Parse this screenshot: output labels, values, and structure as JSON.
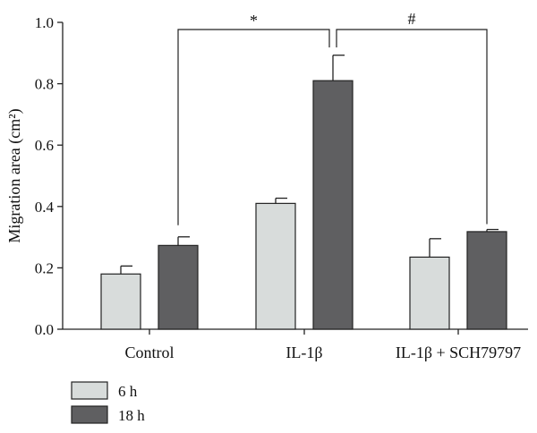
{
  "chart_data": {
    "type": "bar",
    "title": "",
    "xlabel": "",
    "ylabel": "Migration area (cm²)",
    "ylim": [
      0,
      1.0
    ],
    "yticks": [
      "0.0",
      "0.2",
      "0.4",
      "0.6",
      "0.8",
      "1.0"
    ],
    "categories": [
      "Control",
      "IL-1β",
      "IL-1β + SCH79797"
    ],
    "series": [
      {
        "name": "6 h",
        "color": "#d8dcdb",
        "values": [
          0.18,
          0.41,
          0.235
        ],
        "errors": [
          0.026,
          0.017,
          0.06
        ]
      },
      {
        "name": "18 h",
        "color": "#5f5f61",
        "values": [
          0.273,
          0.81,
          0.318
        ],
        "errors": [
          0.028,
          0.083,
          0.007
        ]
      }
    ],
    "legend_position": "bottom-left",
    "annotations": [
      {
        "symbol": "*",
        "from_category": "Control",
        "to_category": "IL-1β",
        "series": "18 h"
      },
      {
        "symbol": "#",
        "from_category": "IL-1β",
        "to_category": "IL-1β + SCH79797",
        "series": "18 h"
      }
    ]
  }
}
